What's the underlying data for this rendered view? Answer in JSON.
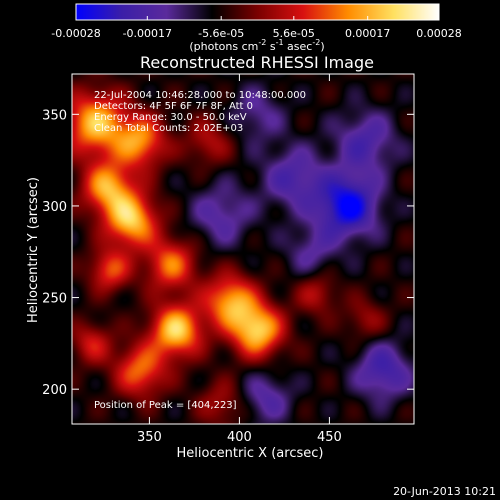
{
  "chart_data": {
    "type": "heatmap",
    "title": "Reconstructed RHESSI Image",
    "xlabel": "Heliocentric X (arcsec)",
    "ylabel": "Heliocentric Y (arcsec)",
    "xlim": [
      307,
      497
    ],
    "ylim": [
      181,
      372
    ],
    "x_ticks": [
      350,
      400,
      450
    ],
    "y_ticks": [
      200,
      250,
      300,
      350
    ],
    "colorbar": {
      "ticks": [
        "-0.00028",
        "-0.00017",
        "-5.6e-05",
        "5.6e-05",
        "0.00017",
        "0.00028"
      ],
      "range": [
        -0.00028,
        0.00028
      ],
      "unit_base": "(photons cm",
      "unit_exp1": "-2",
      "unit_mid": " s",
      "unit_exp2": "-1",
      "unit_mid2": " asec",
      "unit_exp3": "-2",
      "unit_end": ")",
      "stops": [
        "#0000ff",
        "#3a1ea8",
        "#5a2a9c",
        "#000000",
        "#7a0000",
        "#d81010",
        "#ff8c00",
        "#ffe060",
        "#ffffff"
      ]
    },
    "annotations": [
      "22-Jul-2004 10:46:28.000 to 10:48:00.000",
      "Detectors: 4F 5F 6F 7F 8F, Att 0",
      "Energy Range: 30.0 - 50.0 keV",
      "Clean    Total Counts: 2.02E+03"
    ],
    "peak_label": "Position of Peak = [404,223]",
    "peak": [
      404,
      223
    ],
    "sources": [
      {
        "x": 320,
        "y": 345,
        "amp": 0.00024,
        "sigma": 12
      },
      {
        "x": 345,
        "y": 335,
        "amp": 0.0002,
        "sigma": 10
      },
      {
        "x": 327,
        "y": 310,
        "amp": 0.00022,
        "sigma": 10
      },
      {
        "x": 340,
        "y": 292,
        "amp": 0.00025,
        "sigma": 10
      },
      {
        "x": 362,
        "y": 268,
        "amp": 0.00018,
        "sigma": 10
      },
      {
        "x": 328,
        "y": 265,
        "amp": 0.00016,
        "sigma": 8
      },
      {
        "x": 395,
        "y": 248,
        "amp": 0.00022,
        "sigma": 10
      },
      {
        "x": 410,
        "y": 232,
        "amp": 0.00026,
        "sigma": 10
      },
      {
        "x": 365,
        "y": 232,
        "amp": 0.00026,
        "sigma": 10
      },
      {
        "x": 345,
        "y": 210,
        "amp": 0.00018,
        "sigma": 10
      },
      {
        "x": 318,
        "y": 225,
        "amp": 0.00012,
        "sigma": 8
      },
      {
        "x": 383,
        "y": 335,
        "amp": 0.0001,
        "sigma": 9
      },
      {
        "x": 443,
        "y": 252,
        "amp": 0.0001,
        "sigma": 8
      },
      {
        "x": 470,
        "y": 238,
        "amp": 8e-05,
        "sigma": 8
      },
      {
        "x": 390,
        "y": 192,
        "amp": 9e-05,
        "sigma": 9
      },
      {
        "x": 460,
        "y": 300,
        "amp": -0.00022,
        "sigma": 12
      },
      {
        "x": 430,
        "y": 315,
        "amp": -0.00012,
        "sigma": 12
      },
      {
        "x": 470,
        "y": 335,
        "amp": -0.00012,
        "sigma": 12
      },
      {
        "x": 480,
        "y": 210,
        "amp": -0.00014,
        "sigma": 11
      },
      {
        "x": 415,
        "y": 195,
        "amp": -0.0001,
        "sigma": 10
      },
      {
        "x": 410,
        "y": 350,
        "amp": -8e-05,
        "sigma": 11
      },
      {
        "x": 390,
        "y": 295,
        "amp": -0.0001,
        "sigma": 12
      },
      {
        "x": 440,
        "y": 275,
        "amp": -8e-05,
        "sigma": 10
      }
    ]
  },
  "footer": {
    "timestamp": "20-Jun-2013 10:21"
  }
}
